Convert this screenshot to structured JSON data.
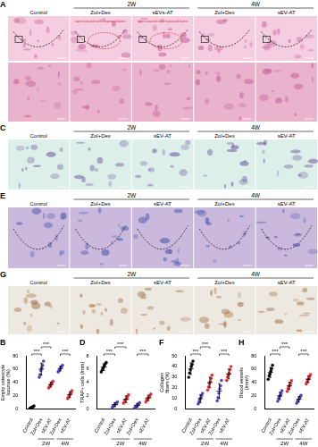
{
  "figure_panels": [
    {
      "panel": "A",
      "columns": [
        "Control",
        "Zol+Dex",
        "sEVs-AT",
        "Zol+Dex",
        "sEV-AT"
      ],
      "groups": [
        {
          "label": "2W",
          "from": 1,
          "to": 2
        },
        {
          "label": "4W",
          "from": 3,
          "to": 4
        }
      ],
      "annotations": [
        {
          "column": 1,
          "text": "open wound with exposed bone"
        },
        {
          "column": 2,
          "text": "open wound with exposed bone"
        }
      ]
    },
    {
      "panel": "C",
      "columns": [
        "Control",
        "Zol+Dex",
        "sEV-AT",
        "Zol+Dex",
        "sEV-AT"
      ],
      "groups": [
        {
          "label": "2W",
          "from": 1,
          "to": 2
        },
        {
          "label": "4W",
          "from": 3,
          "to": 4
        }
      ],
      "annotations": []
    },
    {
      "panel": "E",
      "columns": [
        "Control",
        "Zol+Dex",
        "sEV-AT",
        "Zol+Dex",
        "sEV-AT"
      ],
      "groups": [
        {
          "label": "2W",
          "from": 1,
          "to": 2
        },
        {
          "label": "4W",
          "from": 3,
          "to": 4
        }
      ],
      "annotations": []
    },
    {
      "panel": "G",
      "columns": [
        "Control",
        "Zol+Dex",
        "sEV-AT",
        "Zol+Dex",
        "sEV-AT"
      ],
      "groups": [
        {
          "label": "2W",
          "from": 1,
          "to": 2
        },
        {
          "label": "4W",
          "from": 3,
          "to": 4
        }
      ],
      "annotations": []
    }
  ],
  "chart_data": [
    {
      "panel": "B",
      "type": "scatter",
      "y_label": "Empty osteocyte lacunae (%)",
      "categories": [
        "Control",
        "Zol+Dex",
        "sEV-AT",
        "Zol+Dex",
        "sEV-AT"
      ],
      "groups": [
        {
          "label": "2W",
          "from": 1,
          "to": 2
        },
        {
          "label": "4W",
          "from": 3,
          "to": 4
        }
      ],
      "colors": [
        "#000000",
        "#4b3fc4",
        "#e8262c",
        "#4b3fc4",
        "#e8262c"
      ],
      "points": [
        [
          1,
          2,
          3,
          3,
          4,
          5
        ],
        [
          48,
          52,
          58,
          62,
          66,
          72
        ],
        [
          32,
          34,
          36,
          38,
          40,
          42
        ],
        [
          56,
          58,
          60,
          62,
          64,
          66
        ],
        [
          16,
          18,
          21,
          23,
          25,
          28
        ]
      ],
      "mean": [
        3,
        60,
        37,
        61,
        22
      ],
      "sd": [
        1.4,
        9,
        3.7,
        3.7,
        4.4
      ],
      "significance": [
        {
          "from": 0,
          "to": 1,
          "label": "***"
        },
        {
          "from": 1,
          "to": 2,
          "label": "***"
        },
        {
          "from": 3,
          "to": 4,
          "label": "***"
        }
      ],
      "ylim": [
        0,
        80
      ],
      "yticks": [
        0,
        20,
        40,
        60,
        80
      ],
      "grid": false
    },
    {
      "panel": "D",
      "type": "scatter",
      "y_label": "TRAP+ cells (/mm)",
      "categories": [
        "Control",
        "Zol+Dex",
        "sEV-AT",
        "Zol+Dex",
        "sEV-AT"
      ],
      "groups": [
        {
          "label": "2W",
          "from": 1,
          "to": 2
        },
        {
          "label": "4W",
          "from": 3,
          "to": 4
        }
      ],
      "colors": [
        "#000000",
        "#4b3fc4",
        "#e8262c",
        "#4b3fc4",
        "#e8262c"
      ],
      "points": [
        [
          5.6,
          5.9,
          6.2,
          6.5,
          6.8,
          7.0
        ],
        [
          0.3,
          0.5,
          0.6,
          0.8,
          0.9,
          1.1
        ],
        [
          0.9,
          1.2,
          1.4,
          1.6,
          1.9,
          2.2
        ],
        [
          0.2,
          0.4,
          0.5,
          0.6,
          0.8,
          1.0
        ],
        [
          1.1,
          1.4,
          1.6,
          1.8,
          2.0,
          2.3
        ]
      ],
      "mean": [
        6.3,
        0.7,
        1.5,
        0.6,
        1.7
      ],
      "sd": [
        0.5,
        0.3,
        0.5,
        0.3,
        0.4
      ],
      "significance": [
        {
          "from": 0,
          "to": 1,
          "label": "***"
        },
        {
          "from": 1,
          "to": 2,
          "label": "***"
        },
        {
          "from": 3,
          "to": 4,
          "label": "***"
        }
      ],
      "ylim": [
        0,
        8
      ],
      "yticks": [
        0,
        2,
        4,
        6,
        8
      ],
      "grid": false
    },
    {
      "panel": "F",
      "type": "scatter",
      "y_label": "Collagen fibers (%)",
      "categories": [
        "Control",
        "Zol+Dex",
        "sEV-AT",
        "Zol+Dex",
        "sEV-AT"
      ],
      "groups": [
        {
          "label": "2W",
          "from": 1,
          "to": 2
        },
        {
          "label": "4W",
          "from": 3,
          "to": 4
        }
      ],
      "colors": [
        "#000000",
        "#4b3fc4",
        "#e8262c",
        "#4b3fc4",
        "#e8262c"
      ],
      "points": [
        [
          30,
          34,
          37,
          40,
          42,
          45
        ],
        [
          5,
          7,
          9,
          11,
          13,
          15
        ],
        [
          18,
          21,
          24,
          26,
          29,
          32
        ],
        [
          8,
          11,
          15,
          19,
          22,
          27
        ],
        [
          27,
          30,
          32,
          34,
          37,
          40
        ]
      ],
      "mean": [
        38,
        10,
        25,
        17,
        33
      ],
      "sd": [
        5.4,
        3.7,
        5,
        7,
        4.6
      ],
      "significance": [
        {
          "from": 0,
          "to": 1,
          "label": "***"
        },
        {
          "from": 1,
          "to": 2,
          "label": "***"
        },
        {
          "from": 3,
          "to": 4,
          "label": "***"
        }
      ],
      "ylim": [
        0,
        50
      ],
      "yticks": [
        0,
        10,
        20,
        30,
        40,
        50
      ],
      "grid": false
    },
    {
      "panel": "H",
      "type": "scatter",
      "y_label": "Blood vessels (/mm²)",
      "categories": [
        "Control",
        "Zol+Dex",
        "sEV-AT",
        "Zol+Dex",
        "sEV-AT"
      ],
      "groups": [
        {
          "label": "2W",
          "from": 1,
          "to": 2
        },
        {
          "label": "4W",
          "from": 3,
          "to": 4
        }
      ],
      "colors": [
        "#000000",
        "#4b3fc4",
        "#e8262c",
        "#4b3fc4",
        "#e8262c"
      ],
      "points": [
        [
          45,
          50,
          53,
          57,
          61,
          66
        ],
        [
          12,
          16,
          19,
          21,
          24,
          28
        ],
        [
          27,
          31,
          34,
          36,
          39,
          43
        ],
        [
          9,
          12,
          14,
          16,
          18,
          21
        ],
        [
          38,
          41,
          44,
          46,
          49,
          52
        ]
      ],
      "mean": [
        55,
        20,
        35,
        15,
        45
      ],
      "sd": [
        7.4,
        5.5,
        5.6,
        4.2,
        5
      ],
      "significance": [
        {
          "from": 0,
          "to": 1,
          "label": "***"
        },
        {
          "from": 1,
          "to": 2,
          "label": "***"
        },
        {
          "from": 3,
          "to": 4,
          "label": "***"
        }
      ],
      "ylim": [
        0,
        80
      ],
      "yticks": [
        0,
        20,
        40,
        60,
        80
      ],
      "grid": false
    }
  ]
}
